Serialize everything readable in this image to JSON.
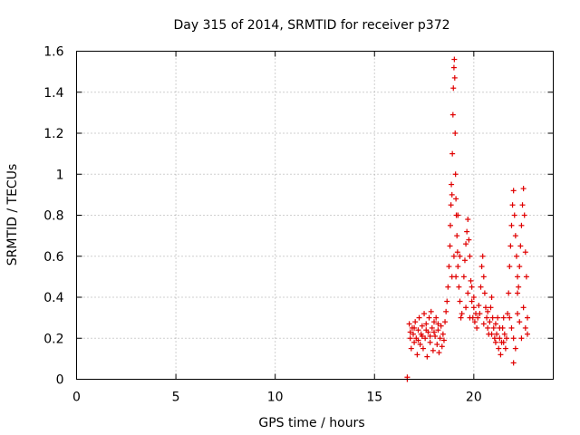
{
  "chart_data": {
    "type": "scatter",
    "title": "Day 315 of 2014, SRMTID for receiver p372",
    "xlabel": "GPS time / hours",
    "ylabel": "SRMTID / TECUs",
    "xlim": [
      0,
      24
    ],
    "ylim": [
      0,
      1.6
    ],
    "xticks": [
      0,
      5,
      10,
      15,
      20
    ],
    "xtick_labels": [
      "0",
      "5",
      "10",
      "15",
      "20"
    ],
    "yticks": [
      0,
      0.2,
      0.4,
      0.6,
      0.8,
      1.0,
      1.2,
      1.4,
      1.6
    ],
    "ytick_labels": [
      "0",
      "0.2",
      "0.4",
      "0.6",
      "0.8",
      "1",
      "1.2",
      "1.4",
      "1.6"
    ],
    "grid": true,
    "marker": "plus",
    "color": "#e00000",
    "series": [
      {
        "name": "SRMTID",
        "points": [
          [
            16.65,
            0.0
          ],
          [
            16.65,
            0.01
          ],
          [
            16.75,
            0.27
          ],
          [
            16.8,
            0.2
          ],
          [
            16.85,
            0.15
          ],
          [
            16.9,
            0.25
          ],
          [
            16.95,
            0.22
          ],
          [
            17.0,
            0.18
          ],
          [
            17.05,
            0.28
          ],
          [
            17.1,
            0.2
          ],
          [
            17.15,
            0.12
          ],
          [
            17.2,
            0.24
          ],
          [
            17.25,
            0.3
          ],
          [
            17.3,
            0.17
          ],
          [
            17.35,
            0.22
          ],
          [
            17.4,
            0.26
          ],
          [
            17.45,
            0.15
          ],
          [
            17.5,
            0.32
          ],
          [
            17.55,
            0.2
          ],
          [
            17.6,
            0.27
          ],
          [
            17.65,
            0.11
          ],
          [
            17.7,
            0.23
          ],
          [
            17.75,
            0.3
          ],
          [
            17.8,
            0.18
          ],
          [
            17.85,
            0.33
          ],
          [
            17.9,
            0.25
          ],
          [
            17.95,
            0.14
          ],
          [
            18.0,
            0.28
          ],
          [
            18.05,
            0.21
          ],
          [
            18.1,
            0.3
          ],
          [
            18.15,
            0.17
          ],
          [
            18.2,
            0.24
          ],
          [
            18.25,
            0.13
          ],
          [
            18.3,
            0.2
          ],
          [
            18.35,
            0.26
          ],
          [
            18.4,
            0.16
          ],
          [
            18.45,
            0.22
          ],
          [
            18.5,
            0.19
          ],
          [
            18.55,
            0.28
          ],
          [
            18.6,
            0.33
          ],
          [
            18.65,
            0.38
          ],
          [
            16.8,
            0.23
          ],
          [
            17.0,
            0.25
          ],
          [
            17.2,
            0.19
          ],
          [
            17.4,
            0.21
          ],
          [
            17.6,
            0.24
          ],
          [
            17.8,
            0.21
          ],
          [
            18.0,
            0.23
          ],
          [
            18.2,
            0.27
          ],
          [
            18.7,
            0.45
          ],
          [
            18.75,
            0.55
          ],
          [
            18.8,
            0.65
          ],
          [
            18.82,
            0.75
          ],
          [
            18.85,
            0.85
          ],
          [
            18.87,
            0.95
          ],
          [
            18.9,
            0.9
          ],
          [
            18.92,
            1.1
          ],
          [
            18.95,
            1.29
          ],
          [
            18.97,
            1.42
          ],
          [
            19.0,
            1.52
          ],
          [
            19.02,
            1.56
          ],
          [
            19.04,
            1.47
          ],
          [
            19.06,
            1.2
          ],
          [
            19.08,
            1.0
          ],
          [
            19.1,
            0.88
          ],
          [
            19.12,
            0.8
          ],
          [
            19.15,
            0.7
          ],
          [
            19.18,
            0.62
          ],
          [
            19.2,
            0.55
          ],
          [
            19.25,
            0.45
          ],
          [
            19.3,
            0.38
          ],
          [
            19.35,
            0.3
          ],
          [
            19.4,
            0.32
          ],
          [
            18.9,
            0.5
          ],
          [
            19.0,
            0.6
          ],
          [
            19.1,
            0.5
          ],
          [
            19.2,
            0.8
          ],
          [
            19.3,
            0.6
          ],
          [
            19.5,
            0.5
          ],
          [
            19.55,
            0.58
          ],
          [
            19.6,
            0.66
          ],
          [
            19.65,
            0.72
          ],
          [
            19.7,
            0.78
          ],
          [
            19.75,
            0.68
          ],
          [
            19.8,
            0.6
          ],
          [
            19.85,
            0.48
          ],
          [
            19.9,
            0.38
          ],
          [
            19.95,
            0.3
          ],
          [
            20.0,
            0.35
          ],
          [
            20.05,
            0.28
          ],
          [
            20.1,
            0.32
          ],
          [
            20.15,
            0.25
          ],
          [
            20.2,
            0.3
          ],
          [
            20.25,
            0.36
          ],
          [
            19.6,
            0.35
          ],
          [
            19.7,
            0.42
          ],
          [
            19.8,
            0.3
          ],
          [
            19.9,
            0.45
          ],
          [
            20.0,
            0.4
          ],
          [
            20.3,
            0.32
          ],
          [
            20.35,
            0.45
          ],
          [
            20.4,
            0.55
          ],
          [
            20.45,
            0.6
          ],
          [
            20.5,
            0.5
          ],
          [
            20.55,
            0.42
          ],
          [
            20.6,
            0.35
          ],
          [
            20.65,
            0.3
          ],
          [
            20.7,
            0.25
          ],
          [
            20.75,
            0.22
          ],
          [
            20.8,
            0.28
          ],
          [
            20.85,
            0.35
          ],
          [
            20.9,
            0.4
          ],
          [
            20.95,
            0.3
          ],
          [
            21.0,
            0.25
          ],
          [
            21.05,
            0.2
          ],
          [
            21.1,
            0.18
          ],
          [
            21.15,
            0.22
          ],
          [
            21.2,
            0.3
          ],
          [
            21.25,
            0.15
          ],
          [
            21.3,
            0.2
          ],
          [
            21.35,
            0.12
          ],
          [
            21.4,
            0.18
          ],
          [
            21.45,
            0.25
          ],
          [
            21.5,
            0.3
          ],
          [
            21.55,
            0.22
          ],
          [
            21.6,
            0.15
          ],
          [
            21.65,
            0.2
          ],
          [
            21.7,
            0.32
          ],
          [
            20.5,
            0.27
          ],
          [
            20.7,
            0.33
          ],
          [
            20.9,
            0.22
          ],
          [
            21.1,
            0.27
          ],
          [
            21.3,
            0.25
          ],
          [
            21.5,
            0.18
          ],
          [
            21.75,
            0.42
          ],
          [
            21.8,
            0.55
          ],
          [
            21.85,
            0.65
          ],
          [
            21.9,
            0.75
          ],
          [
            21.95,
            0.85
          ],
          [
            22.0,
            0.92
          ],
          [
            22.05,
            0.8
          ],
          [
            22.1,
            0.7
          ],
          [
            22.15,
            0.6
          ],
          [
            22.2,
            0.5
          ],
          [
            22.25,
            0.45
          ],
          [
            22.3,
            0.55
          ],
          [
            22.35,
            0.65
          ],
          [
            22.4,
            0.75
          ],
          [
            22.45,
            0.85
          ],
          [
            22.5,
            0.93
          ],
          [
            22.55,
            0.8
          ],
          [
            22.6,
            0.62
          ],
          [
            22.65,
            0.5
          ],
          [
            22.7,
            0.3
          ],
          [
            21.8,
            0.3
          ],
          [
            21.9,
            0.25
          ],
          [
            22.0,
            0.2
          ],
          [
            22.1,
            0.15
          ],
          [
            22.2,
            0.32
          ],
          [
            22.3,
            0.28
          ],
          [
            22.4,
            0.2
          ],
          [
            22.5,
            0.35
          ],
          [
            22.6,
            0.25
          ],
          [
            22.7,
            0.22
          ],
          [
            22.0,
            0.08
          ],
          [
            22.2,
            0.42
          ]
        ]
      }
    ]
  }
}
